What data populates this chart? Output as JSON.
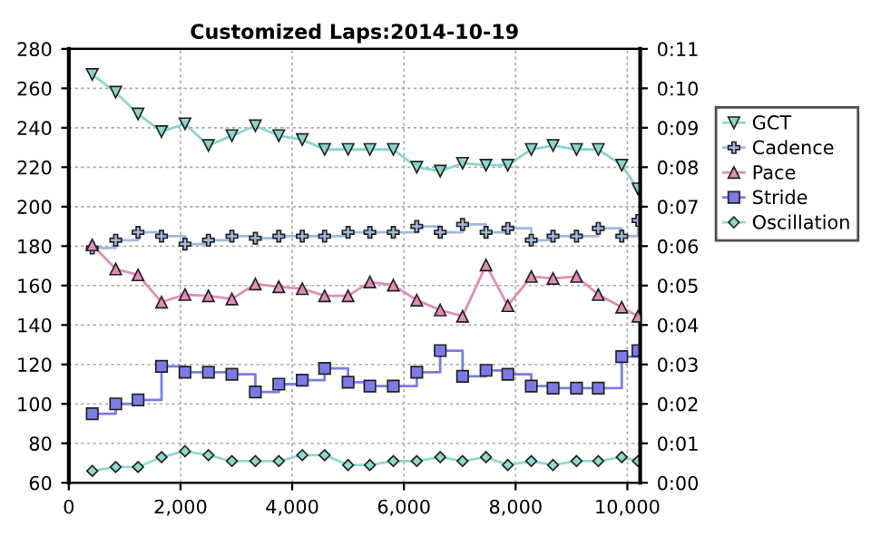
{
  "chart_data": {
    "type": "line",
    "title": "Customized Laps:2014-10-19",
    "x": [
      420,
      840,
      1240,
      1660,
      2080,
      2500,
      2920,
      3340,
      3760,
      4180,
      4580,
      5000,
      5390,
      5810,
      6230,
      6650,
      7050,
      7470,
      7860,
      8280,
      8670,
      9090,
      9480,
      9900,
      10190
    ],
    "series": [
      {
        "name": "GCT",
        "marker": "triangle_down",
        "color": "#8ad4cc",
        "values": [
          267,
          258,
          247,
          238,
          242,
          231,
          236,
          241,
          236,
          234,
          229,
          229,
          229,
          229,
          220,
          218,
          222,
          221,
          221,
          229,
          231,
          229,
          229,
          221,
          209
        ]
      },
      {
        "name": "Cadence",
        "type": "step",
        "marker": "cross",
        "color": "#9fb8e0",
        "values": [
          179,
          183,
          187,
          185,
          181,
          183,
          185,
          184,
          185,
          185,
          185,
          187,
          187,
          187,
          190,
          187,
          191,
          187,
          189,
          183,
          185,
          185,
          189,
          185,
          193
        ]
      },
      {
        "name": "Pace",
        "axis": "y2",
        "marker": "triangle",
        "color": "#e08cb8",
        "values": [
          6.03,
          5.42,
          5.27,
          4.58,
          4.77,
          4.74,
          4.66,
          5.04,
          4.97,
          4.92,
          4.74,
          4.74,
          5.09,
          5.01,
          4.63,
          4.38,
          4.22,
          5.52,
          4.49,
          5.23,
          5.18,
          5.23,
          4.77,
          4.45,
          4.22
        ]
      },
      {
        "name": "Stride",
        "type": "step",
        "marker": "square",
        "color": "#7b7be8",
        "values": [
          95,
          100,
          102,
          119,
          116,
          116,
          115,
          106,
          110,
          112,
          118,
          111,
          109,
          109,
          116,
          127,
          114,
          117,
          115,
          109,
          108,
          108,
          108,
          124,
          127
        ]
      },
      {
        "name": "Oscillation",
        "marker": "diamond",
        "color": "#90d8d0",
        "values": [
          66,
          68,
          68,
          73,
          76,
          74,
          71,
          71,
          71,
          74,
          74,
          69,
          69,
          71,
          71,
          73,
          71,
          73,
          69,
          71,
          69,
          71,
          71,
          73,
          71
        ]
      }
    ],
    "xlim": [
      0,
      10230
    ],
    "xticks": [
      0,
      {
        "value": 2000,
        "label": "2,000"
      },
      {
        "value": 4000,
        "label": "4,000"
      },
      {
        "value": 6000,
        "label": "6,000"
      },
      {
        "value": 8000,
        "label": "8,000"
      },
      {
        "value": 10000,
        "label": "10,000"
      }
    ],
    "ylim": [
      60,
      280
    ],
    "yticks": [
      60,
      80,
      100,
      120,
      140,
      160,
      180,
      200,
      220,
      240,
      260,
      280
    ],
    "y2lim": [
      0,
      11
    ],
    "y2ticks": [
      {
        "value": 0,
        "label": "0:00"
      },
      {
        "value": 1,
        "label": "0:01"
      },
      {
        "value": 2,
        "label": "0:02"
      },
      {
        "value": 3,
        "label": "0:03"
      },
      {
        "value": 4,
        "label": "0:04"
      },
      {
        "value": 5,
        "label": "0:05"
      },
      {
        "value": 6,
        "label": "0:06"
      },
      {
        "value": 7,
        "label": "0:07"
      },
      {
        "value": 8,
        "label": "0:08"
      },
      {
        "value": 9,
        "label": "0:09"
      },
      {
        "value": 10,
        "label": "0:10"
      },
      {
        "value": 11,
        "label": "0:11"
      }
    ],
    "grid": true,
    "legend": "right",
    "line_style": "solid"
  }
}
